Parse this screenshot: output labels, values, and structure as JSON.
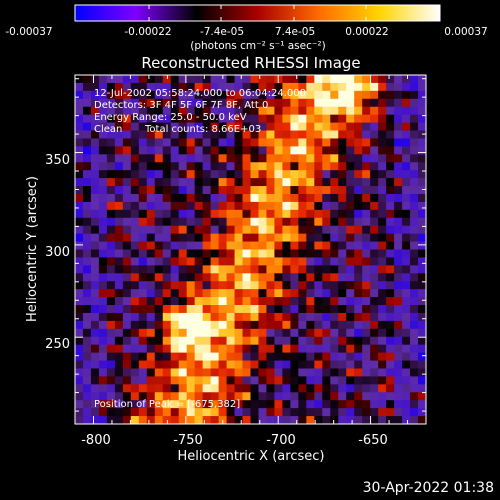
{
  "colorbar": {
    "tick_labels": [
      "-0.00037",
      "-0.00022",
      "-7.4e-05",
      "7.4e-05",
      "0.00022",
      "0.00037"
    ],
    "tick_values": [
      -0.00037,
      -0.00022,
      -7.4e-05,
      7.4e-05,
      0.00022,
      0.00037
    ],
    "range": [
      -0.00037,
      0.00037
    ],
    "units_label": "(photons cm⁻² s⁻¹ asec⁻²)",
    "colors": [
      "#0000ff",
      "#7f00ff",
      "#000000",
      "#aa0000",
      "#ff6a00",
      "#ffd400",
      "#ffffff"
    ]
  },
  "chart_data": {
    "type": "heatmap",
    "title": "Reconstructed RHESSI Image",
    "xlabel": "Heliocentric X (arcsec)",
    "ylabel": "Heliocentric Y (arcsec)",
    "xlim": [
      -810,
      -620
    ],
    "ylim": [
      203,
      392
    ],
    "x_ticks": [
      -800,
      -750,
      -700,
      -650
    ],
    "x_tick_labels": [
      "-800",
      "-750",
      "-700",
      "-650"
    ],
    "y_ticks": [
      250,
      300,
      350
    ],
    "y_tick_labels": [
      "250",
      "300",
      "350"
    ],
    "peak_position": [
      -675,
      382
    ],
    "annotations": {
      "time": "12-Jul-2002 05:58:24.000 to 06:04:24.000",
      "detectors": "Detectors: 3F 4F 5F 6F 7F 8F, Att 0",
      "energy": "Energy Range: 25.0 - 50.0 keV",
      "method": "Clean",
      "counts": "Total counts: 8.66E+03",
      "peak": "Position of Peak = [-675,382]"
    }
  },
  "footer": {
    "date": "30-Apr-2022 01:38"
  }
}
